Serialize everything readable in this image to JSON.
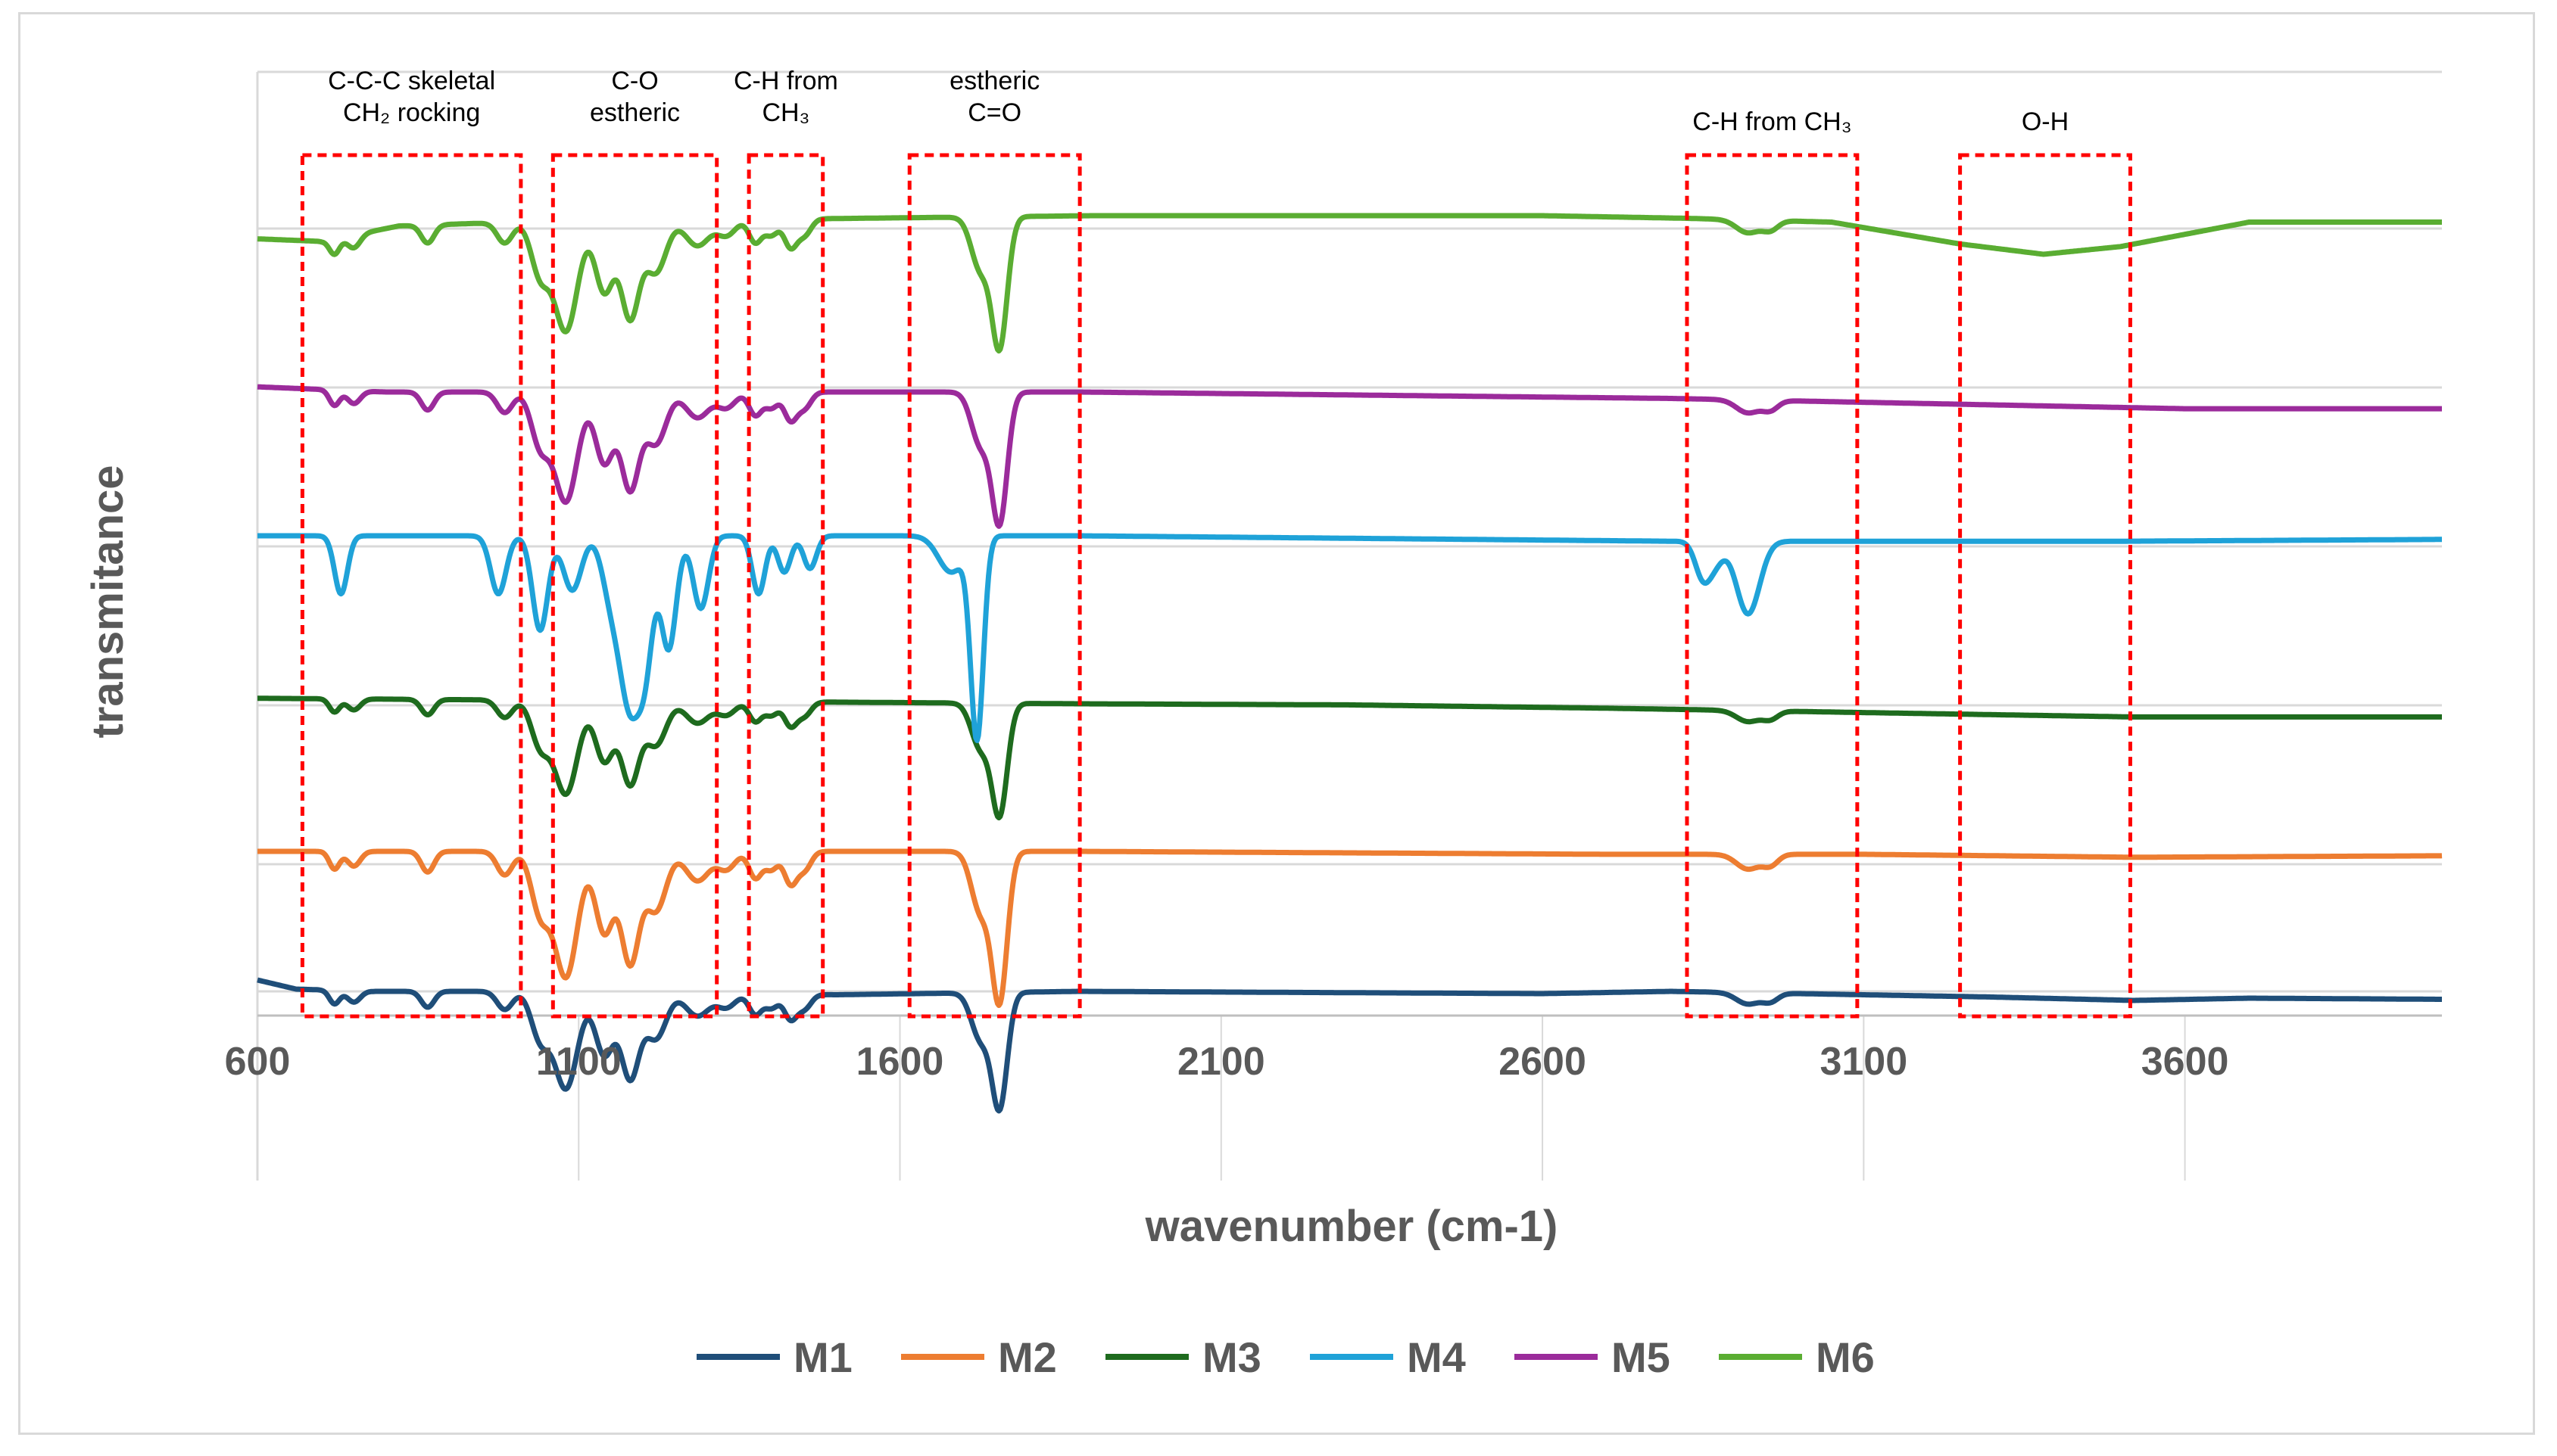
{
  "chart_data": {
    "type": "line",
    "title": "",
    "xlabel": "wavenumber (cm-1)",
    "ylabel": "transmitance",
    "xlim": [
      600,
      4000
    ],
    "x_ticks": [
      600,
      1100,
      1600,
      2100,
      2600,
      3100,
      3600
    ],
    "x_tick_labels": [
      "600",
      "1100",
      "1600",
      "2100",
      "2600",
      "3100",
      "3600"
    ],
    "grid": true,
    "legend_position": "bottom",
    "series": [
      {
        "name": "M1",
        "color": "#1f4e79",
        "offset_level": 1
      },
      {
        "name": "M2",
        "color": "#ed7d31",
        "offset_level": 2
      },
      {
        "name": "M3",
        "color": "#1e6b1e",
        "offset_level": 3
      },
      {
        "name": "M4",
        "color": "#1fa2d8",
        "offset_level": 4
      },
      {
        "name": "M5",
        "color": "#9b2b9b",
        "offset_level": 5
      },
      {
        "name": "M6",
        "color": "#5aad32",
        "offset_level": 6
      }
    ],
    "annotations": [
      {
        "id": "ccc",
        "lines": [
          "C-C-C skeletal",
          "CH₂ rocking"
        ],
        "x_range": [
          670,
          1010
        ]
      },
      {
        "id": "co",
        "lines": [
          "C-O",
          "estheric"
        ],
        "x_range": [
          1060,
          1315
        ]
      },
      {
        "id": "chlow",
        "lines": [
          "C-H from",
          "CH₃"
        ],
        "x_range": [
          1365,
          1480
        ]
      },
      {
        "id": "co2",
        "lines": [
          "estheric",
          "C=O"
        ],
        "x_range": [
          1615,
          1880
        ]
      },
      {
        "id": "chhigh",
        "lines": [
          "C-H from CH₃"
        ],
        "x_range": [
          2825,
          3090
        ]
      },
      {
        "id": "oh",
        "lines": [
          "O-H"
        ],
        "x_range": [
          3250,
          3515
        ]
      }
    ]
  }
}
